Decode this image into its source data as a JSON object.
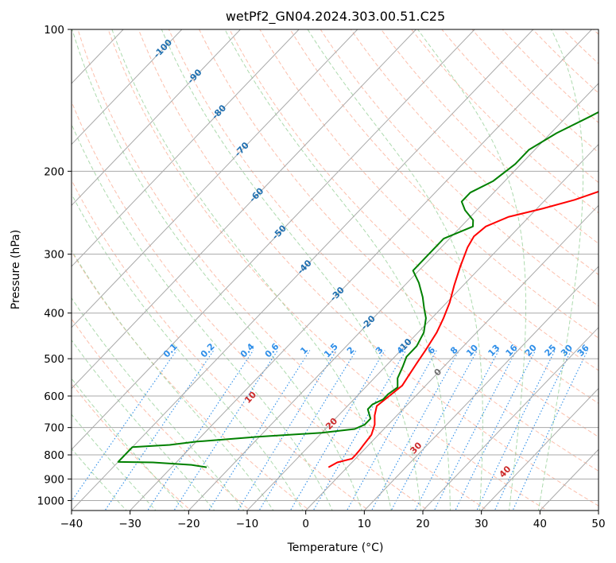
{
  "chart_data": {
    "type": "line",
    "title": "wetPf2_GN04.2024.303.00.51.C25",
    "xlabel": "Temperature (°C)",
    "ylabel": "Pressure (hPa)",
    "xlim": [
      -40,
      50
    ],
    "ylim": [
      1050,
      100
    ],
    "yscale": "log",
    "grid": true,
    "x_ticks": [
      "−40",
      "−30",
      "−20",
      "−10",
      "0",
      "10",
      "20",
      "30",
      "40",
      "50"
    ],
    "x_tick_values": [
      -40,
      -30,
      -20,
      -10,
      0,
      10,
      20,
      30,
      40,
      50
    ],
    "y_ticks": [
      "1000",
      "900",
      "800",
      "700",
      "600",
      "500",
      "400",
      "300",
      "200",
      "100"
    ],
    "y_tick_values": [
      1000,
      900,
      800,
      700,
      600,
      500,
      400,
      300,
      200,
      100
    ],
    "skew": 0.96,
    "colors": {
      "temperature": "#ff0000",
      "dewpoint": "#008000",
      "isotherm": "#a9a9a9",
      "dry_adiabat": "#fbb49d",
      "moist_adiabat": "#9fd3a0",
      "mixing_ratio": "#2e8ee8",
      "isotherm_label": "#1f6fb0",
      "dry_adiabat_label": "#cc2a2a",
      "zero_label": "#707070"
    },
    "series": [
      {
        "key": "temperature",
        "points": [
          [
            -3.2,
            850
          ],
          [
            -2.5,
            830
          ],
          [
            -0.6,
            815
          ],
          [
            -0.6,
            800
          ],
          [
            -0.7,
            780
          ],
          [
            -0.9,
            760
          ],
          [
            -1.2,
            725
          ],
          [
            -2.3,
            690
          ],
          [
            -3.8,
            660
          ],
          [
            -5.0,
            630
          ],
          [
            -4.5,
            600
          ],
          [
            -4.0,
            570
          ],
          [
            -4.5,
            545
          ],
          [
            -5.2,
            510
          ],
          [
            -5.8,
            480
          ],
          [
            -6.8,
            440
          ],
          [
            -8.0,
            410
          ],
          [
            -9.5,
            380
          ],
          [
            -11.5,
            350
          ],
          [
            -13.5,
            320
          ],
          [
            -15.5,
            290
          ],
          [
            -16.2,
            275
          ],
          [
            -15.8,
            262
          ],
          [
            -13.5,
            250
          ],
          [
            -9.0,
            240
          ],
          [
            -5.0,
            230
          ],
          [
            -2.0,
            220
          ],
          [
            1.0,
            208
          ],
          [
            4.0,
            197
          ],
          [
            8.0,
            183
          ],
          [
            13.0,
            166
          ],
          [
            18.0,
            151
          ],
          [
            23.0,
            138
          ],
          [
            28.0,
            127
          ],
          [
            33.0,
            117
          ],
          [
            38.0,
            108
          ],
          [
            42.0,
            100
          ]
        ]
      },
      {
        "key": "dewpoint",
        "points": [
          [
            -24,
            850
          ],
          [
            -27,
            840
          ],
          [
            -34,
            830
          ],
          [
            -40,
            828
          ],
          [
            -40,
            770
          ],
          [
            -34,
            762
          ],
          [
            -30,
            750
          ],
          [
            -20,
            732
          ],
          [
            -10,
            718
          ],
          [
            -5,
            705
          ],
          [
            -4,
            690
          ],
          [
            -4,
            670
          ],
          [
            -5,
            655
          ],
          [
            -6,
            640
          ],
          [
            -6,
            625
          ],
          [
            -5,
            610
          ],
          [
            -5,
            595
          ],
          [
            -4.5,
            575
          ],
          [
            -6,
            550
          ],
          [
            -7,
            520
          ],
          [
            -8,
            495
          ],
          [
            -8,
            470
          ],
          [
            -9,
            440
          ],
          [
            -11,
            410
          ],
          [
            -13,
            390
          ],
          [
            -15,
            370
          ],
          [
            -18,
            345
          ],
          [
            -21,
            325
          ],
          [
            -21,
            295
          ],
          [
            -21,
            278
          ],
          [
            -18,
            262
          ],
          [
            -19,
            254
          ],
          [
            -22,
            242
          ],
          [
            -24,
            232
          ],
          [
            -24,
            222
          ],
          [
            -22,
            210
          ],
          [
            -21,
            193
          ],
          [
            -21,
            180
          ],
          [
            -19,
            166
          ],
          [
            -16,
            153
          ],
          [
            -13,
            140
          ],
          [
            -10,
            127
          ],
          [
            -7,
            115
          ],
          [
            -5,
            106
          ],
          [
            -4,
            100
          ]
        ]
      }
    ],
    "dry_adiabat_labels": [
      "10",
      "20",
      "30",
      "40"
    ],
    "dry_adiabat_label_values": [
      10,
      20,
      30,
      40
    ],
    "zero_isotherm_label": "0",
    "isotherm_labels": [
      "-100",
      "-90",
      "-80",
      "-70",
      "-60",
      "-50",
      "-40",
      "-30",
      "-20",
      "-10"
    ],
    "isotherm_label_values": [
      -100,
      -90,
      -80,
      -70,
      -60,
      -50,
      -40,
      -30,
      -20,
      -10
    ],
    "mixing_ratio_labels": [
      "0.1",
      "0.2",
      "0.4",
      "0.6",
      "1",
      "1.5",
      "2",
      "3",
      "4",
      "6",
      "8",
      "10",
      "13",
      "16",
      "20",
      "25",
      "30",
      "36"
    ],
    "mixing_ratio_values": [
      0.1,
      0.2,
      0.4,
      0.6,
      1,
      1.5,
      2,
      3,
      4,
      6,
      8,
      10,
      13,
      16,
      20,
      25,
      30,
      36
    ],
    "mixing_ratio_label_pressure": 500
  }
}
